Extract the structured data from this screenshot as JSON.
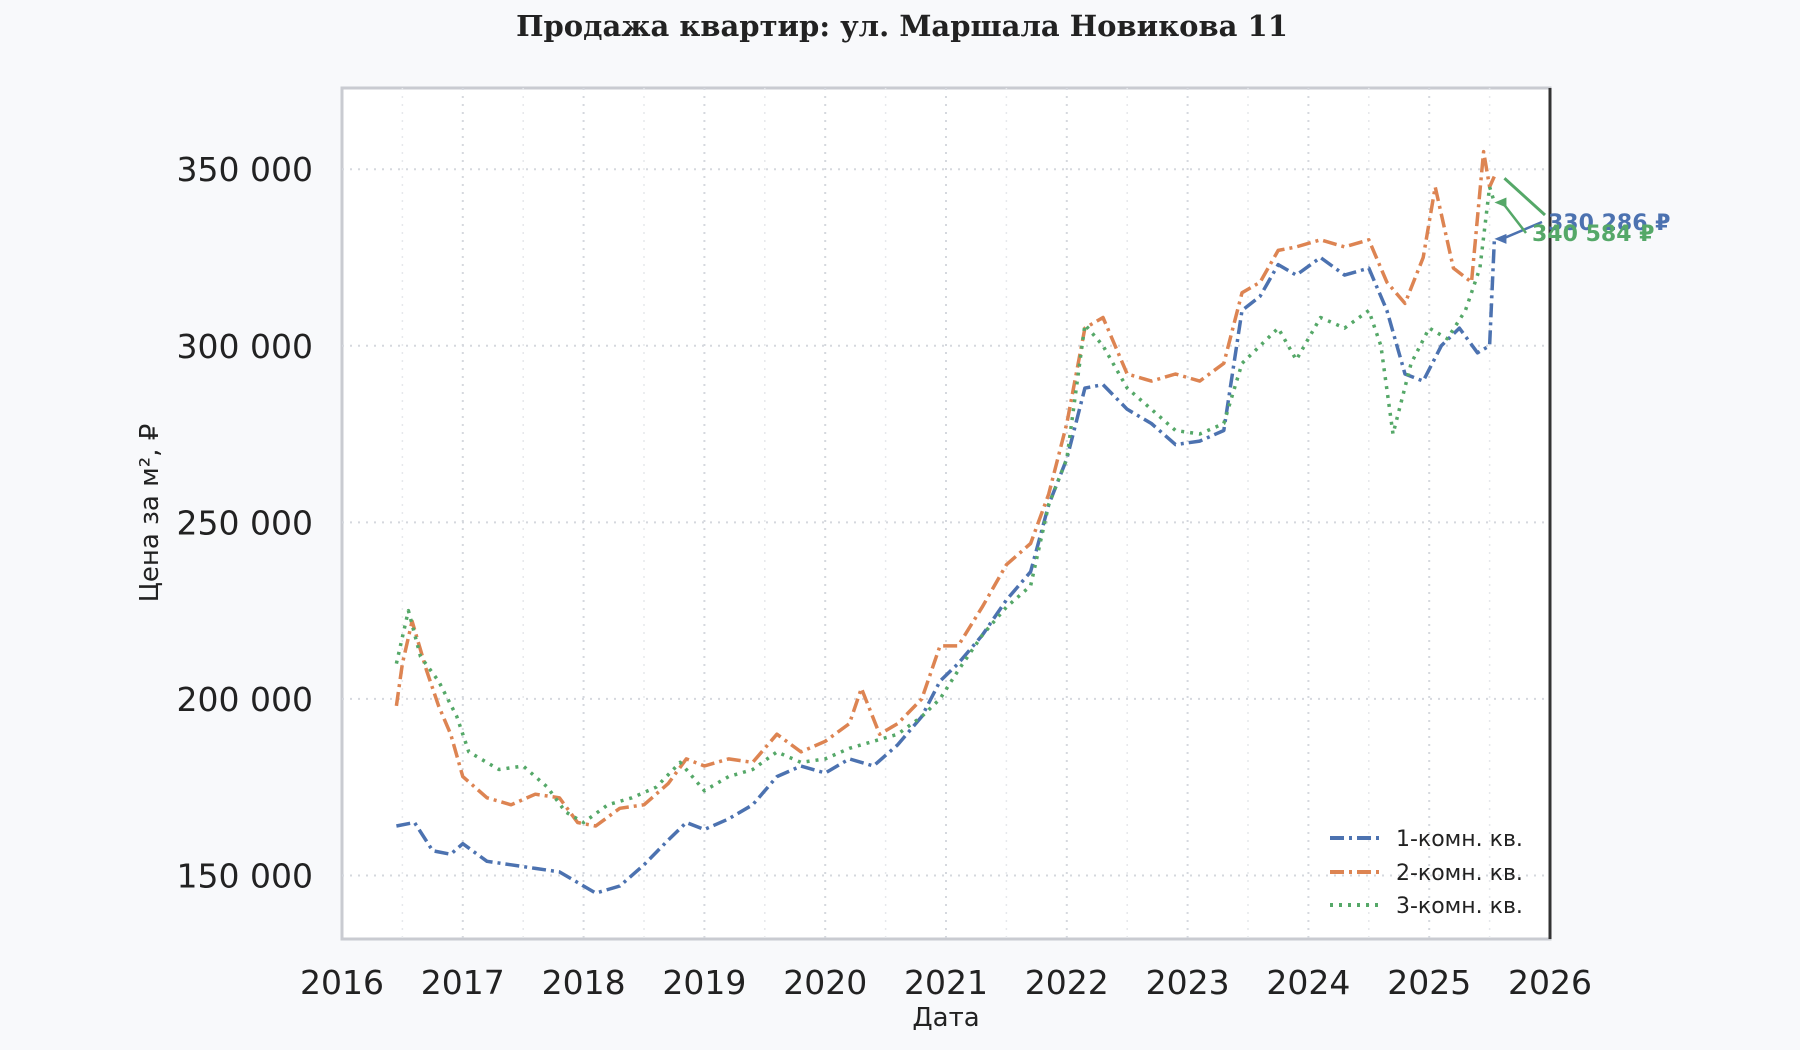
{
  "chart_data": {
    "type": "line",
    "title": "Продажа квартир: ул. Маршала Новикова 11",
    "xlabel": "Дата",
    "ylabel": "Цена за м², ₽",
    "xlim": [
      2016,
      2026
    ],
    "ylim": [
      132000,
      373000
    ],
    "x_ticks": [
      "2016",
      "2017",
      "2018",
      "2019",
      "2020",
      "2021",
      "2022",
      "2023",
      "2024",
      "2025",
      "2026"
    ],
    "y_ticks": [
      "150 000",
      "200 000",
      "250 000",
      "300 000",
      "350 000"
    ],
    "y_tick_values": [
      150000,
      200000,
      250000,
      300000,
      350000
    ],
    "grid": true,
    "legend_position": "lower-right",
    "series": [
      {
        "name": "1-комн. кв.",
        "color": "#4c72b0",
        "dash": "dashdot",
        "points": [
          [
            2016.45,
            164000
          ],
          [
            2016.6,
            165000
          ],
          [
            2016.75,
            157000
          ],
          [
            2016.9,
            156000
          ],
          [
            2017.0,
            159000
          ],
          [
            2017.2,
            154000
          ],
          [
            2017.4,
            153000
          ],
          [
            2017.6,
            152000
          ],
          [
            2017.8,
            151000
          ],
          [
            2017.95,
            148000
          ],
          [
            2018.1,
            145000
          ],
          [
            2018.3,
            147000
          ],
          [
            2018.5,
            153000
          ],
          [
            2018.7,
            160000
          ],
          [
            2018.85,
            165000
          ],
          [
            2019.0,
            163000
          ],
          [
            2019.2,
            166000
          ],
          [
            2019.4,
            170000
          ],
          [
            2019.6,
            178000
          ],
          [
            2019.8,
            181000
          ],
          [
            2020.0,
            179000
          ],
          [
            2020.2,
            183000
          ],
          [
            2020.4,
            181000
          ],
          [
            2020.6,
            187000
          ],
          [
            2020.8,
            195000
          ],
          [
            2020.95,
            205000
          ],
          [
            2021.1,
            210000
          ],
          [
            2021.3,
            218000
          ],
          [
            2021.5,
            228000
          ],
          [
            2021.7,
            236000
          ],
          [
            2021.85,
            255000
          ],
          [
            2022.0,
            268000
          ],
          [
            2022.15,
            288000
          ],
          [
            2022.3,
            289000
          ],
          [
            2022.5,
            282000
          ],
          [
            2022.7,
            278000
          ],
          [
            2022.9,
            272000
          ],
          [
            2023.1,
            273000
          ],
          [
            2023.3,
            276000
          ],
          [
            2023.45,
            310000
          ],
          [
            2023.6,
            314000
          ],
          [
            2023.75,
            323000
          ],
          [
            2023.9,
            320000
          ],
          [
            2024.1,
            325000
          ],
          [
            2024.3,
            320000
          ],
          [
            2024.5,
            322000
          ],
          [
            2024.65,
            310000
          ],
          [
            2024.8,
            292000
          ],
          [
            2024.95,
            290000
          ],
          [
            2025.1,
            300000
          ],
          [
            2025.25,
            305000
          ],
          [
            2025.4,
            298000
          ],
          [
            2025.5,
            300000
          ],
          [
            2025.54,
            330286
          ]
        ]
      },
      {
        "name": "2-комн. кв.",
        "color": "#dd8452",
        "dash": "dashdot",
        "points": [
          [
            2016.45,
            198000
          ],
          [
            2016.5,
            210000
          ],
          [
            2016.58,
            222000
          ],
          [
            2016.7,
            208000
          ],
          [
            2016.8,
            198000
          ],
          [
            2016.9,
            190000
          ],
          [
            2017.0,
            178000
          ],
          [
            2017.2,
            172000
          ],
          [
            2017.4,
            170000
          ],
          [
            2017.6,
            173000
          ],
          [
            2017.8,
            172000
          ],
          [
            2017.95,
            165000
          ],
          [
            2018.1,
            164000
          ],
          [
            2018.3,
            169000
          ],
          [
            2018.5,
            170000
          ],
          [
            2018.7,
            176000
          ],
          [
            2018.85,
            183000
          ],
          [
            2019.0,
            181000
          ],
          [
            2019.2,
            183000
          ],
          [
            2019.4,
            182000
          ],
          [
            2019.6,
            190000
          ],
          [
            2019.8,
            185000
          ],
          [
            2020.0,
            188000
          ],
          [
            2020.2,
            193000
          ],
          [
            2020.3,
            203000
          ],
          [
            2020.45,
            190000
          ],
          [
            2020.6,
            193000
          ],
          [
            2020.8,
            200000
          ],
          [
            2020.95,
            215000
          ],
          [
            2021.1,
            215000
          ],
          [
            2021.3,
            226000
          ],
          [
            2021.5,
            238000
          ],
          [
            2021.7,
            244000
          ],
          [
            2021.85,
            258000
          ],
          [
            2022.0,
            278000
          ],
          [
            2022.15,
            305000
          ],
          [
            2022.3,
            308000
          ],
          [
            2022.5,
            292000
          ],
          [
            2022.7,
            290000
          ],
          [
            2022.9,
            292000
          ],
          [
            2023.1,
            290000
          ],
          [
            2023.3,
            295000
          ],
          [
            2023.45,
            315000
          ],
          [
            2023.6,
            318000
          ],
          [
            2023.75,
            327000
          ],
          [
            2023.9,
            328000
          ],
          [
            2024.1,
            330000
          ],
          [
            2024.3,
            328000
          ],
          [
            2024.5,
            330000
          ],
          [
            2024.65,
            318000
          ],
          [
            2024.8,
            312000
          ],
          [
            2024.95,
            325000
          ],
          [
            2025.05,
            345000
          ],
          [
            2025.2,
            322000
          ],
          [
            2025.35,
            318000
          ],
          [
            2025.45,
            355000
          ],
          [
            2025.5,
            345000
          ],
          [
            2025.54,
            348000
          ]
        ]
      },
      {
        "name": "3-комн. кв.",
        "color": "#55a868",
        "dash": "dotted",
        "points": [
          [
            2016.45,
            210000
          ],
          [
            2016.55,
            225000
          ],
          [
            2016.65,
            212000
          ],
          [
            2016.8,
            205000
          ],
          [
            2016.95,
            195000
          ],
          [
            2017.05,
            185000
          ],
          [
            2017.3,
            180000
          ],
          [
            2017.5,
            181000
          ],
          [
            2017.7,
            175000
          ],
          [
            2017.85,
            168000
          ],
          [
            2018.0,
            165000
          ],
          [
            2018.2,
            170000
          ],
          [
            2018.4,
            172000
          ],
          [
            2018.6,
            175000
          ],
          [
            2018.8,
            182000
          ],
          [
            2019.0,
            174000
          ],
          [
            2019.2,
            178000
          ],
          [
            2019.4,
            180000
          ],
          [
            2019.6,
            185000
          ],
          [
            2019.8,
            182000
          ],
          [
            2020.0,
            183000
          ],
          [
            2020.2,
            186000
          ],
          [
            2020.4,
            188000
          ],
          [
            2020.6,
            190000
          ],
          [
            2020.8,
            195000
          ],
          [
            2020.95,
            200000
          ],
          [
            2021.1,
            208000
          ],
          [
            2021.3,
            218000
          ],
          [
            2021.5,
            226000
          ],
          [
            2021.7,
            232000
          ],
          [
            2021.85,
            255000
          ],
          [
            2022.0,
            268000
          ],
          [
            2022.15,
            306000
          ],
          [
            2022.3,
            300000
          ],
          [
            2022.5,
            288000
          ],
          [
            2022.7,
            282000
          ],
          [
            2022.9,
            276000
          ],
          [
            2023.1,
            275000
          ],
          [
            2023.3,
            278000
          ],
          [
            2023.45,
            295000
          ],
          [
            2023.6,
            300000
          ],
          [
            2023.75,
            305000
          ],
          [
            2023.9,
            296000
          ],
          [
            2024.1,
            308000
          ],
          [
            2024.3,
            305000
          ],
          [
            2024.5,
            310000
          ],
          [
            2024.6,
            300000
          ],
          [
            2024.7,
            275000
          ],
          [
            2024.85,
            295000
          ],
          [
            2025.0,
            305000
          ],
          [
            2025.15,
            302000
          ],
          [
            2025.3,
            310000
          ],
          [
            2025.42,
            322000
          ],
          [
            2025.5,
            345000
          ],
          [
            2025.54,
            340584
          ]
        ]
      }
    ],
    "annotations": [
      {
        "text": "330 286 ₽",
        "series": "1-комн. кв.",
        "color": "#4c72b0",
        "value": 330286
      },
      {
        "text": "340 584 ₽",
        "series": "3-комн. кв.",
        "color": "#55a868",
        "value": 340584
      }
    ]
  }
}
